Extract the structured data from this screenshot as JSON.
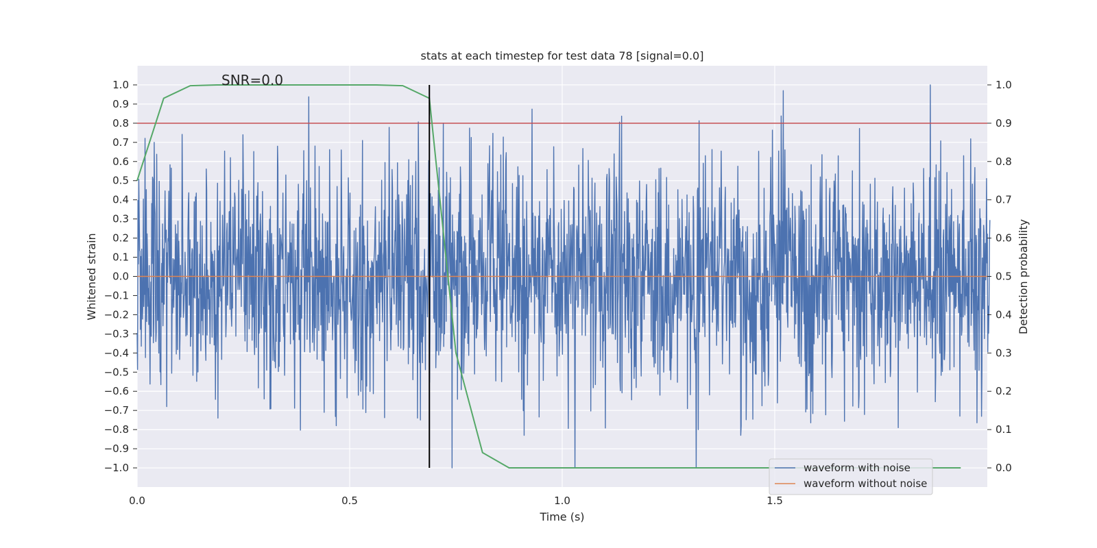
{
  "chart_data": {
    "type": "line",
    "title": "stats at each timestep for test data 78 [signal=0.0]",
    "xlabel": "Time (s)",
    "ylabel": "Whitened strain",
    "y2label": "Detection probability",
    "annotation": "SNR=0.0",
    "xlim": [
      0.0,
      2.0
    ],
    "ylim": [
      -1.1,
      1.1
    ],
    "y2lim": [
      -0.05,
      1.05
    ],
    "xticks": [
      0.0,
      0.5,
      1.0,
      1.5
    ],
    "xtick_labels": [
      "0.0",
      "0.5",
      "1.0",
      "1.5"
    ],
    "yticks": [
      1.0,
      0.9,
      0.8,
      0.7,
      0.6,
      0.5,
      0.4,
      0.3,
      0.2,
      0.1,
      0.0,
      -0.1,
      -0.2,
      -0.3,
      -0.4,
      -0.5,
      -0.6,
      -0.7,
      -0.8,
      -0.9,
      -1.0
    ],
    "ytick_labels": [
      "1.0",
      "0.9",
      "0.8",
      "0.7",
      "0.6",
      "0.5",
      "0.4",
      "0.3",
      "0.2",
      "0.1",
      "0.0",
      "−0.1",
      "−0.2",
      "−0.3",
      "−0.4",
      "−0.5",
      "−0.6",
      "−0.7",
      "−0.8",
      "−0.9",
      "−1.0"
    ],
    "y2ticks": [
      1.0,
      0.9,
      0.8,
      0.7,
      0.6,
      0.5,
      0.4,
      0.3,
      0.2,
      0.1,
      0.0
    ],
    "y2tick_labels": [
      "1.0",
      "0.9",
      "0.8",
      "0.7",
      "0.6",
      "0.5",
      "0.4",
      "0.3",
      "0.2",
      "0.1",
      "0.0"
    ],
    "grid": true,
    "legend_position": "lower-right",
    "series": [
      {
        "name": "waveform with noise",
        "color": "#4c72b0",
        "kind": "noise",
        "n_samples": 2048,
        "dt": 0.00098,
        "std": 0.3,
        "min": -1.0,
        "max": 1.0,
        "peaks": [
          {
            "x": 0.04,
            "y": 0.7
          },
          {
            "x": 0.07,
            "y": -0.68
          },
          {
            "x": 0.19,
            "y": -0.74
          },
          {
            "x": 0.22,
            "y": 0.62
          },
          {
            "x": 0.33,
            "y": 0.68
          },
          {
            "x": 0.44,
            "y": -0.71
          },
          {
            "x": 0.48,
            "y": 0.66
          },
          {
            "x": 0.53,
            "y": 0.71
          },
          {
            "x": 0.66,
            "y": -0.74
          },
          {
            "x": 0.72,
            "y": 0.8
          },
          {
            "x": 0.91,
            "y": -0.83
          },
          {
            "x": 1.03,
            "y": -1.0
          },
          {
            "x": 1.32,
            "y": 0.82
          },
          {
            "x": 1.32,
            "y": -0.8
          },
          {
            "x": 1.42,
            "y": 0.75
          },
          {
            "x": 1.42,
            "y": -0.83
          },
          {
            "x": 1.52,
            "y": 0.97
          },
          {
            "x": 1.79,
            "y": 1.0
          },
          {
            "x": 1.79,
            "y": -0.79
          }
        ]
      },
      {
        "name": "waveform without noise",
        "color": "#dd8452",
        "kind": "constant",
        "value": 0.0
      }
    ],
    "probability_curve": {
      "color": "#55a868",
      "x": [
        0.0,
        0.0625,
        0.125,
        0.1875,
        0.25,
        0.3125,
        0.375,
        0.4375,
        0.5,
        0.5625,
        0.625,
        0.6875,
        0.75,
        0.8125,
        0.875,
        0.9375,
        1.0,
        1.0625,
        1.125,
        1.1875,
        1.25,
        1.3125,
        1.375,
        1.4375,
        1.5,
        1.5625,
        1.625,
        1.6875,
        1.75,
        1.8125,
        1.875,
        1.9375
      ],
      "y": [
        0.75,
        0.965,
        0.998,
        1.0,
        1.0,
        1.0,
        1.0,
        1.0,
        1.0,
        1.0,
        0.998,
        0.965,
        0.3,
        0.04,
        0.0,
        0.0,
        0.0,
        0.0,
        0.0,
        0.0,
        0.0,
        0.0,
        0.0,
        0.0,
        0.0,
        0.0,
        0.0,
        0.0,
        0.0,
        0.0,
        0.0,
        0.0
      ]
    },
    "threshold_line": {
      "y2": 0.9,
      "color": "#c44e52"
    },
    "vertical_marker": {
      "x": 0.6875,
      "y2_top": 1.0,
      "y2_bottom": 0.0,
      "color": "#000000"
    }
  }
}
